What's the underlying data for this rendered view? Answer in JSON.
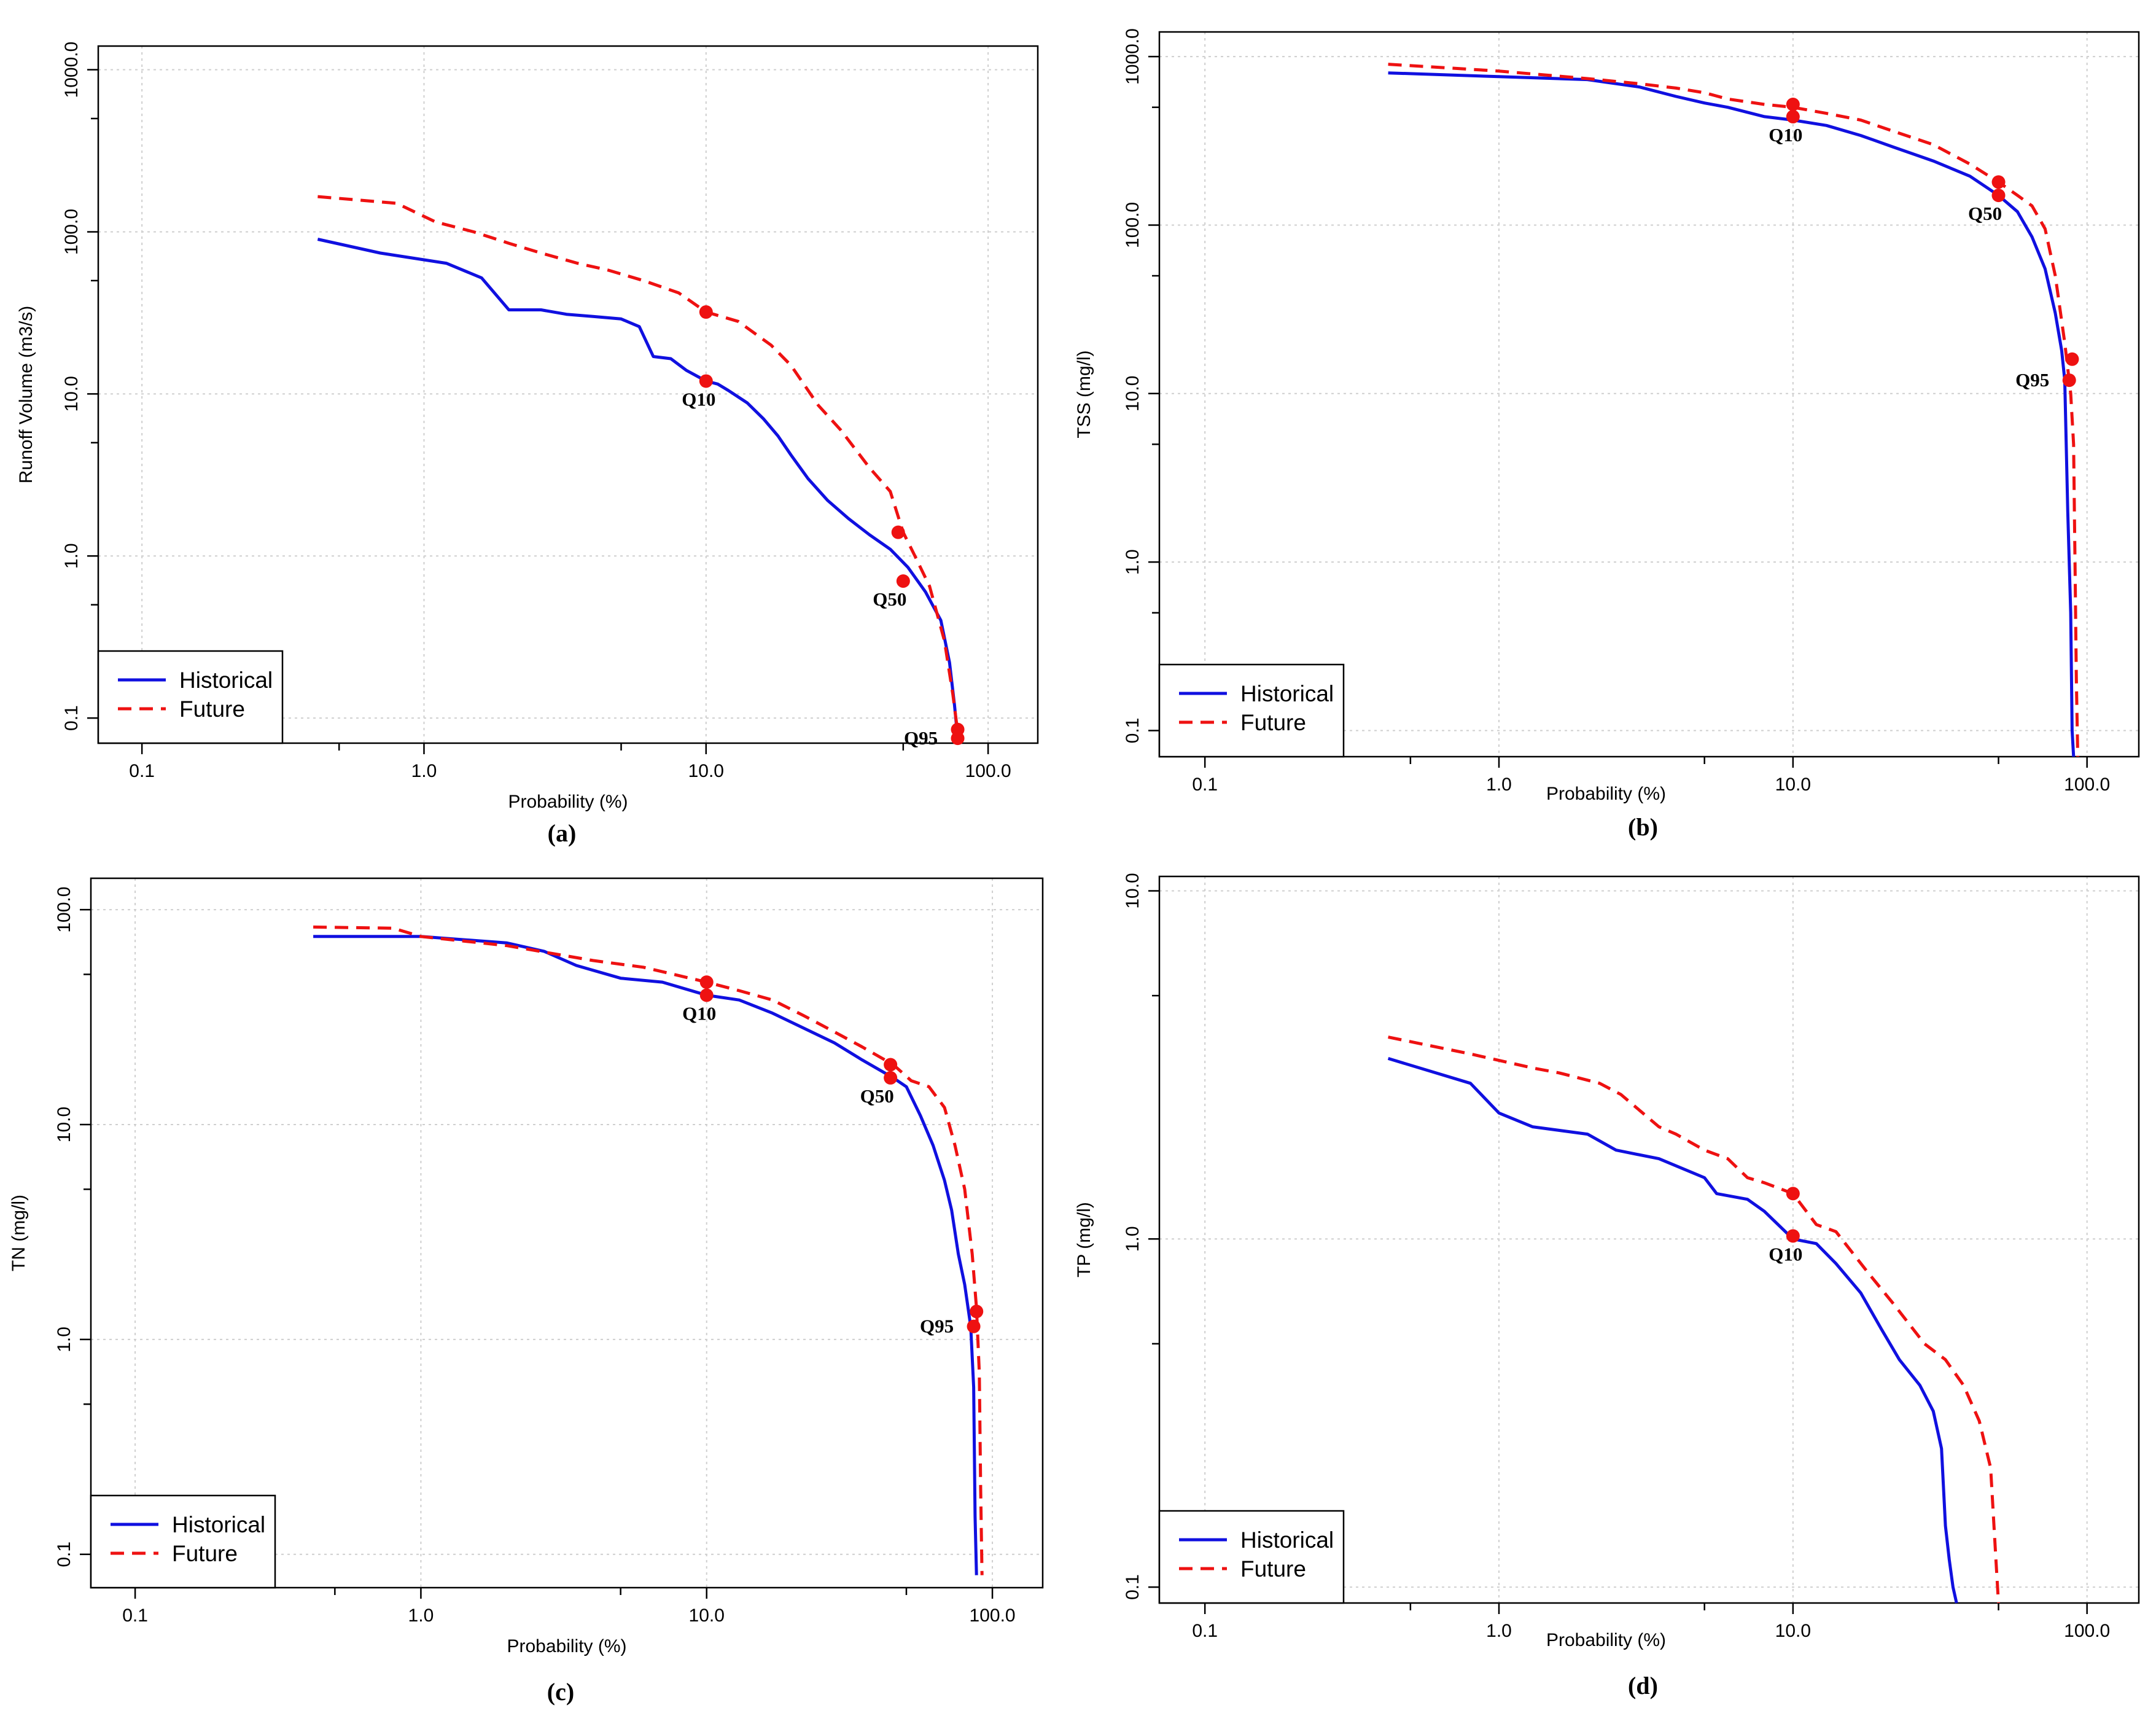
{
  "chart_data": [
    {
      "type": "line",
      "panel_label": "(a)",
      "xlabel": "Probability (%)",
      "ylabel": "Runoff Volume (m3/s)",
      "xscale": "log",
      "yscale": "log",
      "xlim": [
        0.07,
        150
      ],
      "ylim": [
        0.07,
        1400
      ],
      "xticks": [
        0.1,
        1.0,
        10.0,
        100.0
      ],
      "xtick_labels": [
        "0.1",
        "1.0",
        "10.0",
        "100.0"
      ],
      "yticks": [
        0.1,
        1.0,
        10.0,
        100.0,
        1000.0
      ],
      "ytick_labels": [
        "0.1",
        "1.0",
        "10.0",
        "100.0",
        "1000.0"
      ],
      "grid": true,
      "legend_position": "bottom-left",
      "series": [
        {
          "name": "Historical",
          "color": "#1010e0",
          "style": "solid",
          "x": [
            0.42,
            0.7,
            1.2,
            1.6,
            2.0,
            2.6,
            3.2,
            4.0,
            5.0,
            5.8,
            6.5,
            7.5,
            8.5,
            10,
            11,
            12,
            14,
            16,
            18,
            20,
            23,
            27,
            32,
            38,
            45,
            52,
            60,
            68,
            73,
            76,
            78
          ],
          "y": [
            90,
            74,
            64,
            52,
            33,
            33,
            31,
            30,
            29,
            26,
            17,
            16.5,
            14,
            12,
            11.5,
            10.5,
            8.8,
            7,
            5.5,
            4.2,
            3.0,
            2.2,
            1.7,
            1.35,
            1.1,
            0.85,
            0.6,
            0.4,
            0.22,
            0.12,
            0.075
          ]
        },
        {
          "name": "Future",
          "color": "#ee1111",
          "style": "dashed",
          "x": [
            0.42,
            0.8,
            1.1,
            1.5,
            2.0,
            2.6,
            3.5,
            4.5,
            6.0,
            8.0,
            10,
            13,
            17,
            20,
            25,
            30,
            38,
            45,
            50,
            55,
            62,
            70,
            75,
            78
          ],
          "y": [
            165,
            150,
            115,
            100,
            85,
            74,
            64,
            58,
            50,
            42,
            32,
            28,
            20,
            15,
            8.5,
            6,
            3.5,
            2.5,
            1.4,
            1.0,
            0.65,
            0.3,
            0.14,
            0.082
          ]
        }
      ],
      "markers": [
        {
          "label": "Q10",
          "x": 10,
          "y": 12,
          "color": "#ee1111"
        },
        {
          "x": 10,
          "y": 32,
          "color": "#ee1111"
        },
        {
          "label": "Q50",
          "x": 50,
          "y": 0.7,
          "color": "#ee1111"
        },
        {
          "x": 48,
          "y": 1.4,
          "color": "#ee1111"
        },
        {
          "label": "Q95",
          "x": 78,
          "y": 0.075,
          "color": "#ee1111"
        },
        {
          "x": 78,
          "y": 0.085,
          "color": "#ee1111"
        }
      ]
    },
    {
      "type": "line",
      "panel_label": "(b)",
      "xlabel": "Probability (%)",
      "ylabel": "TSS (mg/l)",
      "xscale": "log",
      "yscale": "log",
      "xlim": [
        0.07,
        150
      ],
      "ylim": [
        0.07,
        1400
      ],
      "xticks": [
        0.1,
        1.0,
        10.0,
        100.0
      ],
      "xtick_labels": [
        "0.1",
        "1.0",
        "10.0",
        "100.0"
      ],
      "yticks": [
        0.1,
        1.0,
        10.0,
        100.0,
        1000.0
      ],
      "ytick_labels": [
        "0.1",
        "1.0",
        "10.0",
        "100.0",
        "1000.0"
      ],
      "grid": true,
      "legend_position": "bottom-left",
      "series": [
        {
          "name": "Historical",
          "color": "#1010e0",
          "style": "solid",
          "x": [
            0.42,
            1.0,
            2.0,
            3.0,
            4.0,
            5.0,
            6.0,
            8.0,
            10,
            13,
            17,
            22,
            30,
            40,
            50,
            58,
            65,
            72,
            78,
            82,
            84,
            86,
            88,
            89,
            90
          ],
          "y": [
            800,
            760,
            730,
            660,
            580,
            530,
            500,
            440,
            420,
            390,
            340,
            290,
            240,
            195,
            150,
            120,
            85,
            55,
            30,
            18,
            12,
            2,
            0.5,
            0.1,
            0.07
          ]
        },
        {
          "name": "Future",
          "color": "#ee1111",
          "style": "dashed",
          "x": [
            0.42,
            1.0,
            2.0,
            3.0,
            4.0,
            5.0,
            6.0,
            8.0,
            10,
            13,
            17,
            22,
            30,
            40,
            50,
            58,
            65,
            72,
            78,
            84,
            88,
            90,
            91,
            92,
            93
          ],
          "y": [
            900,
            820,
            740,
            690,
            650,
            610,
            560,
            520,
            500,
            460,
            420,
            360,
            300,
            230,
            180,
            150,
            130,
            95,
            50,
            20,
            10,
            5,
            1.0,
            0.2,
            0.07
          ]
        }
      ],
      "markers": [
        {
          "label": "Q10",
          "x": 10,
          "y": 440,
          "color": "#ee1111"
        },
        {
          "x": 10,
          "y": 520,
          "color": "#ee1111"
        },
        {
          "label": "Q50",
          "x": 50,
          "y": 150,
          "color": "#ee1111"
        },
        {
          "x": 50,
          "y": 180,
          "color": "#ee1111"
        },
        {
          "label": "Q95",
          "x": 87,
          "y": 12,
          "color": "#ee1111"
        },
        {
          "x": 89,
          "y": 16,
          "color": "#ee1111"
        }
      ]
    },
    {
      "type": "line",
      "panel_label": "(c)",
      "xlabel": "Probability (%)",
      "ylabel": "TN (mg/l)",
      "xscale": "log",
      "yscale": "log",
      "xlim": [
        0.07,
        150
      ],
      "ylim": [
        0.07,
        140
      ],
      "xticks": [
        0.1,
        1.0,
        10.0,
        100.0
      ],
      "xtick_labels": [
        "0.1",
        "1.0",
        "10.0",
        "100.0"
      ],
      "yticks": [
        0.1,
        1.0,
        10.0,
        100.0
      ],
      "ytick_labels": [
        "0.1",
        "1.0",
        "10.0",
        "100.0"
      ],
      "grid": true,
      "legend_position": "bottom-left",
      "series": [
        {
          "name": "Historical",
          "color": "#1010e0",
          "style": "solid",
          "x": [
            0.42,
            1.0,
            2.0,
            2.7,
            3.5,
            5.0,
            7.0,
            10,
            13,
            17,
            22,
            28,
            35,
            45,
            50,
            56,
            62,
            68,
            72,
            76,
            80,
            84,
            86,
            87,
            88
          ],
          "y": [
            75,
            75,
            70,
            64,
            55,
            48,
            46,
            40,
            38,
            33,
            28,
            24,
            20,
            16.5,
            15,
            11,
            8,
            5.5,
            4,
            2.5,
            1.8,
            1.15,
            0.6,
            0.15,
            0.08
          ]
        },
        {
          "name": "Future",
          "color": "#ee1111",
          "style": "dashed",
          "x": [
            0.42,
            0.8,
            1.0,
            2.0,
            3.0,
            4.0,
            6.0,
            10,
            13,
            17,
            22,
            28,
            35,
            45,
            52,
            60,
            68,
            74,
            80,
            85,
            88,
            90,
            91,
            92
          ],
          "y": [
            83,
            82,
            75,
            68,
            62,
            58,
            54,
            46,
            42,
            38,
            32,
            27,
            23,
            19,
            16,
            15,
            12,
            8,
            5,
            2.5,
            1.4,
            0.7,
            0.2,
            0.08
          ]
        }
      ],
      "markers": [
        {
          "label": "Q10",
          "x": 10,
          "y": 40,
          "color": "#ee1111"
        },
        {
          "x": 10,
          "y": 46,
          "color": "#ee1111"
        },
        {
          "label": "Q50",
          "x": 44,
          "y": 16.5,
          "color": "#ee1111"
        },
        {
          "x": 44,
          "y": 19,
          "color": "#ee1111"
        },
        {
          "label": "Q95",
          "x": 86,
          "y": 1.15,
          "color": "#ee1111"
        },
        {
          "x": 88,
          "y": 1.35,
          "color": "#ee1111"
        }
      ]
    },
    {
      "type": "line",
      "panel_label": "(d)",
      "xlabel": "Probability (%)",
      "ylabel": "TP (mg/l)",
      "xscale": "log",
      "yscale": "log",
      "xlim": [
        0.07,
        150
      ],
      "ylim": [
        0.09,
        11
      ],
      "xticks": [
        0.1,
        1.0,
        10.0,
        100.0
      ],
      "xtick_labels": [
        "0.1",
        "1.0",
        "10.0",
        "100.0"
      ],
      "yticks": [
        0.1,
        1.0,
        10.0
      ],
      "ytick_labels": [
        "0.1",
        "1.0",
        "10.0"
      ],
      "grid": true,
      "legend_position": "bottom-left",
      "series": [
        {
          "name": "Historical",
          "color": "#1010e0",
          "style": "solid",
          "x": [
            0.42,
            0.8,
            1.0,
            1.3,
            2.0,
            2.5,
            3.5,
            5.0,
            5.5,
            7.0,
            8.0,
            10,
            12,
            14,
            17,
            20,
            23,
            27,
            30,
            32,
            33,
            34,
            35,
            36
          ],
          "y": [
            3.3,
            2.8,
            2.3,
            2.1,
            2.0,
            1.8,
            1.7,
            1.5,
            1.35,
            1.3,
            1.2,
            1.0,
            0.97,
            0.85,
            0.7,
            0.55,
            0.45,
            0.38,
            0.32,
            0.25,
            0.15,
            0.12,
            0.1,
            0.09
          ]
        },
        {
          "name": "Future",
          "color": "#ee1111",
          "style": "dashed",
          "x": [
            0.42,
            0.8,
            1.3,
            1.6,
            2.2,
            2.6,
            3.5,
            4.0,
            5.0,
            6.0,
            7.0,
            8.0,
            10,
            12,
            14,
            18,
            22,
            28,
            33,
            38,
            43,
            47,
            49,
            50
          ],
          "y": [
            3.8,
            3.4,
            3.1,
            3.0,
            2.8,
            2.6,
            2.1,
            2.0,
            1.8,
            1.7,
            1.5,
            1.45,
            1.35,
            1.1,
            1.05,
            0.8,
            0.65,
            0.5,
            0.45,
            0.38,
            0.3,
            0.22,
            0.12,
            0.09
          ]
        }
      ],
      "markers": [
        {
          "label": "Q10",
          "x": 10,
          "y": 1.02,
          "color": "#ee1111"
        },
        {
          "x": 10,
          "y": 1.35,
          "color": "#ee1111"
        }
      ]
    }
  ]
}
